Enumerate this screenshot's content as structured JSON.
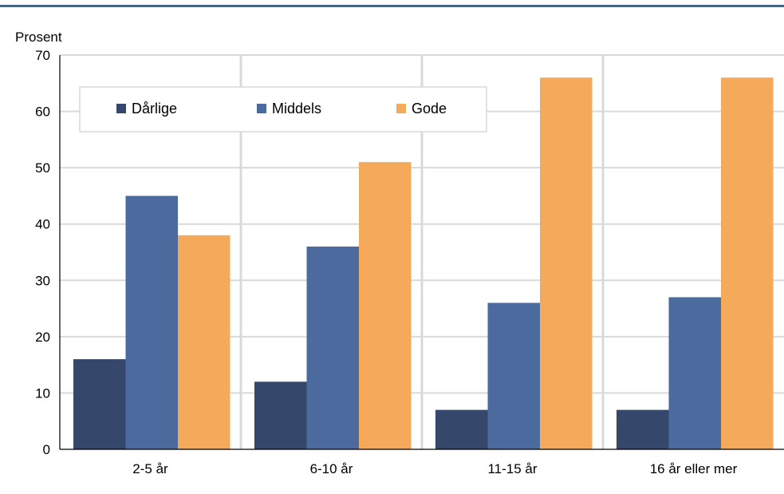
{
  "chart_data": {
    "type": "bar",
    "ylabel": "Prosent",
    "ylim": [
      0,
      70
    ],
    "yticks": [
      0,
      10,
      20,
      30,
      40,
      50,
      60,
      70
    ],
    "grid": true,
    "legend_position": "top-left",
    "categories": [
      "2-5 år",
      "6-10 år",
      "11-15 år",
      "16 år eller mer"
    ],
    "series": [
      {
        "name": "Dårlige",
        "color": "#35476a",
        "values": [
          16,
          12,
          7,
          7
        ]
      },
      {
        "name": "Middels",
        "color": "#4b6b9f",
        "values": [
          45,
          36,
          26,
          27
        ]
      },
      {
        "name": "Gode",
        "color": "#f5a95b",
        "values": [
          38,
          51,
          66,
          66
        ]
      }
    ]
  }
}
